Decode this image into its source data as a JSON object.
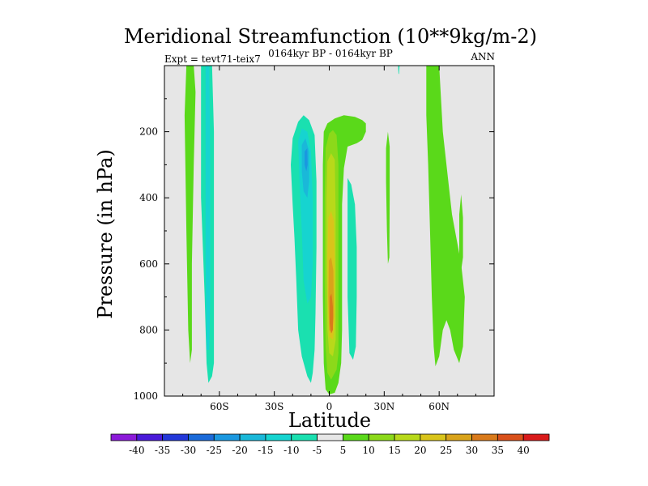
{
  "chart_data": {
    "type": "contour",
    "title": "Meridional Streamfunction (10**9kg/m-2)",
    "subtitle": "0164kyr BP - 0164kyr BP",
    "left_string": "Expt = tevt71-teix7",
    "right_string": "ANN",
    "xlabel": "Latitude",
    "ylabel": "Pressure (in hPa)",
    "xlim": [
      -90,
      90
    ],
    "ylim": [
      0,
      1000
    ],
    "y_inverted": true,
    "x_ticks": [
      {
        "value": -60,
        "label": "60S"
      },
      {
        "value": -30,
        "label": "30S"
      },
      {
        "value": 0,
        "label": "0"
      },
      {
        "value": 30,
        "label": "30N"
      },
      {
        "value": 60,
        "label": "60N"
      }
    ],
    "y_ticks": [
      {
        "value": 200,
        "label": "200"
      },
      {
        "value": 400,
        "label": "400"
      },
      {
        "value": 600,
        "label": "600"
      },
      {
        "value": 800,
        "label": "800"
      },
      {
        "value": 1000,
        "label": "1000"
      }
    ],
    "background_color": "#e6e6e6",
    "colorbar": {
      "labels": [
        "-40",
        "-35",
        "-30",
        "-25",
        "-20",
        "-15",
        "-10",
        "-5",
        "5",
        "10",
        "15",
        "20",
        "25",
        "30",
        "35",
        "40"
      ],
      "colors": [
        "#8c1ad9",
        "#4a1ad9",
        "#2338d9",
        "#1a6ad9",
        "#1a98e0",
        "#1ab8d9",
        "#16d4d0",
        "#1ae0b0",
        "#e6e6e6",
        "#5ad91a",
        "#8cd91a",
        "#b8d91a",
        "#d9c41a",
        "#d9a31a",
        "#d97a1a",
        "#d9501a",
        "#d91a1a"
      ]
    },
    "regions": [
      {
        "name": "green-band-65S",
        "level": 5,
        "color": "#5ad91a",
        "points": [
          [
            -78,
            0
          ],
          [
            -74,
            0
          ],
          [
            -73,
            80
          ],
          [
            -74,
            300
          ],
          [
            -75,
            600
          ],
          [
            -75,
            860
          ],
          [
            -76,
            900
          ],
          [
            -77,
            800
          ],
          [
            -78,
            500
          ],
          [
            -79,
            150
          ]
        ]
      },
      {
        "name": "cyan-band-65S",
        "level": -5,
        "color": "#1ae0b0",
        "points": [
          [
            -70,
            0
          ],
          [
            -64,
            0
          ],
          [
            -63,
            200
          ],
          [
            -63,
            500
          ],
          [
            -63,
            800
          ],
          [
            -63,
            900
          ],
          [
            -64,
            940
          ],
          [
            -66,
            960
          ],
          [
            -67,
            900
          ],
          [
            -68,
            700
          ],
          [
            -70,
            400
          ],
          [
            -70,
            100
          ]
        ]
      },
      {
        "name": "inner-band-65S",
        "level": -10,
        "color": "#16d4d0",
        "points": [
          [
            -67.5,
            0
          ],
          [
            -65.5,
            0
          ],
          [
            -65,
            300
          ],
          [
            -65,
            700
          ],
          [
            -65.5,
            860
          ],
          [
            -67,
            860
          ],
          [
            -67.5,
            600
          ]
        ]
      },
      {
        "name": "cyan-cell-20S",
        "level": -5,
        "color": "#1ae0b0",
        "points": [
          [
            -20,
            220
          ],
          [
            -17,
            170
          ],
          [
            -14,
            150
          ],
          [
            -11,
            165
          ],
          [
            -8,
            210
          ],
          [
            -7,
            350
          ],
          [
            -7,
            550
          ],
          [
            -7.5,
            750
          ],
          [
            -8,
            860
          ],
          [
            -9,
            930
          ],
          [
            -10,
            960
          ],
          [
            -12,
            940
          ],
          [
            -15,
            880
          ],
          [
            -17,
            800
          ],
          [
            -18,
            650
          ],
          [
            -19,
            520
          ],
          [
            -20,
            420
          ],
          [
            -21,
            300
          ]
        ]
      },
      {
        "name": "lev10-cell-20S",
        "level": -10,
        "color": "#16d4d0",
        "points": [
          [
            -17,
            230
          ],
          [
            -15,
            190
          ],
          [
            -12,
            200
          ],
          [
            -10,
            260
          ],
          [
            -9,
            400
          ],
          [
            -9,
            600
          ],
          [
            -10,
            700
          ],
          [
            -12,
            720
          ],
          [
            -14,
            650
          ],
          [
            -15,
            500
          ],
          [
            -16,
            380
          ]
        ]
      },
      {
        "name": "lev15-cell-20S",
        "level": -15,
        "color": "#1ab8d9",
        "points": [
          [
            -15,
            240
          ],
          [
            -13,
            220
          ],
          [
            -11,
            260
          ],
          [
            -11,
            350
          ],
          [
            -12,
            400
          ],
          [
            -14,
            380
          ],
          [
            -15,
            320
          ]
        ]
      },
      {
        "name": "lev20-cell-20S",
        "level": -20,
        "color": "#1a98e0",
        "points": [
          [
            -13.5,
            260
          ],
          [
            -12,
            250
          ],
          [
            -11.8,
            300
          ],
          [
            -12.5,
            320
          ],
          [
            -13.5,
            300
          ]
        ]
      },
      {
        "name": "green-cell-5N",
        "level": 5,
        "color": "#5ad91a",
        "points": [
          [
            -3,
            200
          ],
          [
            -1,
            175
          ],
          [
            3,
            160
          ],
          [
            8,
            150
          ],
          [
            14,
            155
          ],
          [
            18,
            165
          ],
          [
            20,
            175
          ],
          [
            20,
            200
          ],
          [
            18,
            225
          ],
          [
            15,
            235
          ],
          [
            10,
            245
          ],
          [
            8,
            310
          ],
          [
            7,
            420
          ],
          [
            7,
            600
          ],
          [
            7,
            800
          ],
          [
            6.5,
            900
          ],
          [
            5,
            960
          ],
          [
            3,
            990
          ],
          [
            0,
            995
          ],
          [
            -2,
            980
          ],
          [
            -3,
            900
          ],
          [
            -3.5,
            700
          ],
          [
            -3.5,
            500
          ],
          [
            -3.5,
            300
          ]
        ]
      },
      {
        "name": "lev10-cell-5N",
        "level": 10,
        "color": "#8cd91a",
        "points": [
          [
            -2,
            250
          ],
          [
            0,
            205
          ],
          [
            2,
            195
          ],
          [
            4,
            210
          ],
          [
            5,
            300
          ],
          [
            5,
            500
          ],
          [
            5,
            700
          ],
          [
            5,
            870
          ],
          [
            4,
            920
          ],
          [
            1,
            950
          ],
          [
            -1,
            930
          ],
          [
            -2,
            850
          ],
          [
            -2.5,
            650
          ],
          [
            -2.5,
            400
          ]
        ]
      },
      {
        "name": "lev15-cell-5N",
        "level": 15,
        "color": "#b8d91a",
        "points": [
          [
            -1,
            290
          ],
          [
            1,
            265
          ],
          [
            3,
            285
          ],
          [
            3.5,
            450
          ],
          [
            3.5,
            650
          ],
          [
            3.5,
            830
          ],
          [
            2,
            880
          ],
          [
            0,
            870
          ],
          [
            -1,
            800
          ],
          [
            -1.5,
            600
          ],
          [
            -1.5,
            400
          ]
        ]
      },
      {
        "name": "lev20-cell-5N",
        "level": 20,
        "color": "#d9c41a",
        "points": [
          [
            -0.5,
            460
          ],
          [
            1,
            440
          ],
          [
            2.5,
            470
          ],
          [
            3,
            600
          ],
          [
            3,
            780
          ],
          [
            2,
            830
          ],
          [
            0,
            820
          ],
          [
            -0.8,
            720
          ],
          [
            -1,
            580
          ]
        ]
      },
      {
        "name": "lev25-cell-5N",
        "level": 25,
        "color": "#d9a31a",
        "points": [
          [
            -0.2,
            590
          ],
          [
            1,
            580
          ],
          [
            2.2,
            620
          ],
          [
            2.5,
            760
          ],
          [
            1.5,
            810
          ],
          [
            0,
            800
          ],
          [
            -0.5,
            700
          ]
        ]
      },
      {
        "name": "lev30-cell-5N",
        "level": 30,
        "color": "#d97a1a",
        "points": [
          [
            0.3,
            700
          ],
          [
            1.2,
            690
          ],
          [
            2,
            730
          ],
          [
            2,
            800
          ],
          [
            1,
            810
          ],
          [
            0.2,
            780
          ]
        ]
      },
      {
        "name": "cyan-cell-12N",
        "level": -5,
        "color": "#1ae0b0",
        "points": [
          [
            10,
            340
          ],
          [
            12,
            360
          ],
          [
            14,
            420
          ],
          [
            15,
            550
          ],
          [
            15,
            700
          ],
          [
            14.5,
            850
          ],
          [
            13,
            890
          ],
          [
            11,
            870
          ],
          [
            10,
            700
          ],
          [
            10,
            500
          ]
        ]
      },
      {
        "name": "green-patch-32N",
        "level": 5,
        "color": "#5ad91a",
        "points": [
          [
            31,
            250
          ],
          [
            32,
            200
          ],
          [
            33,
            245
          ],
          [
            33,
            400
          ],
          [
            32.8,
            580
          ],
          [
            32,
            600
          ],
          [
            31.5,
            500
          ],
          [
            31,
            350
          ]
        ]
      },
      {
        "name": "cyan-speck-38N",
        "level": -5,
        "color": "#1ae0b0",
        "points": [
          [
            37.6,
            0
          ],
          [
            38.4,
            0
          ],
          [
            38.1,
            25
          ],
          [
            37.8,
            25
          ]
        ]
      },
      {
        "name": "green-band-60N",
        "level": 5,
        "color": "#5ad91a",
        "points": [
          [
            53,
            0
          ],
          [
            60,
            0
          ],
          [
            62,
            200
          ],
          [
            64,
            300
          ],
          [
            67,
            450
          ],
          [
            70,
            540
          ],
          [
            72,
            600
          ],
          [
            74,
            700
          ],
          [
            73,
            850
          ],
          [
            71,
            900
          ],
          [
            68,
            860
          ],
          [
            66,
            800
          ],
          [
            64,
            770
          ],
          [
            62,
            800
          ],
          [
            60,
            880
          ],
          [
            58,
            910
          ],
          [
            57,
            850
          ],
          [
            56,
            700
          ],
          [
            55,
            500
          ],
          [
            54,
            300
          ],
          [
            53,
            150
          ]
        ]
      },
      {
        "name": "green-patch-72N",
        "level": 5,
        "color": "#5ad91a",
        "points": [
          [
            71,
            450
          ],
          [
            72,
            390
          ],
          [
            73,
            460
          ],
          [
            73,
            580
          ],
          [
            72,
            620
          ],
          [
            71,
            580
          ]
        ]
      }
    ]
  }
}
